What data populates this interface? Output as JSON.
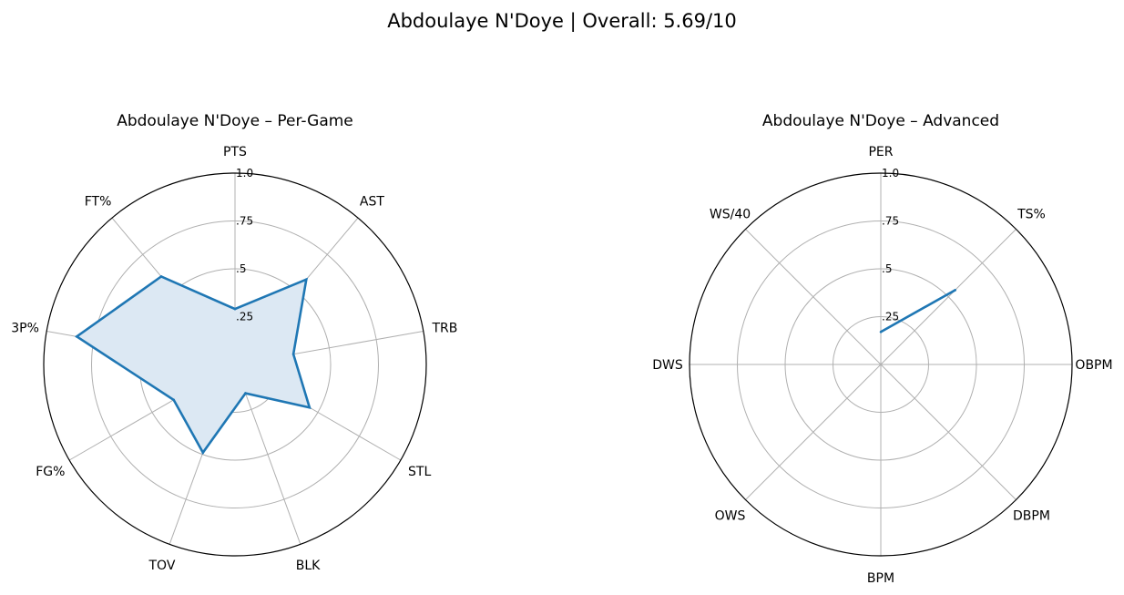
{
  "figure": {
    "title": "Abdoulaye N'Doye | Overall: 5.69/10"
  },
  "chart_data": [
    {
      "type": "radar",
      "title": "Abdoulaye N'Doye – Per-Game",
      "categories": [
        "PTS",
        "AST",
        "TRB",
        "STL",
        "BLK",
        "TOV",
        "FG%",
        "3P%",
        "FT%"
      ],
      "series": [
        {
          "values": [
            0.29,
            0.58,
            0.31,
            0.45,
            0.16,
            0.49,
            0.37,
            0.84,
            0.6
          ]
        }
      ],
      "rlim": [
        0,
        1.0
      ],
      "rticks": [
        0.25,
        0.5,
        0.75,
        1.0
      ],
      "rtick_labels": [
        ".25",
        ".5",
        ".75",
        "1.0"
      ],
      "filled": true,
      "closed": true,
      "grid": true,
      "color": "#1f77b4",
      "fill_color": "#dce8f3"
    },
    {
      "type": "radar",
      "title": "Abdoulaye N'Doye – Advanced",
      "categories": [
        "PER",
        "TS%",
        "OBPM",
        "DBPM",
        "BPM",
        "OWS",
        "DWS",
        "WS/40"
      ],
      "series": [
        {
          "values": [
            0.17,
            0.55,
            null,
            null,
            null,
            null,
            null,
            null
          ]
        }
      ],
      "rlim": [
        0,
        1.0
      ],
      "rticks": [
        0.25,
        0.5,
        0.75,
        1.0
      ],
      "rtick_labels": [
        ".25",
        ".5",
        ".75",
        "1.0"
      ],
      "filled": false,
      "closed": false,
      "grid": true,
      "color": "#1f77b4"
    }
  ]
}
